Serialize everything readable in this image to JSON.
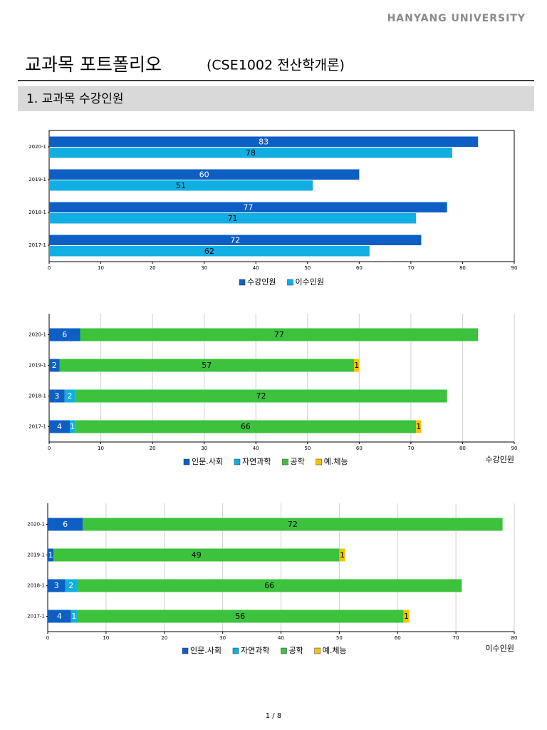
{
  "header": {
    "brand": "HANYANG UNIVERSITY",
    "title": "교과목 포트폴리오",
    "course": "(CSE1002 전산학개론)"
  },
  "section": {
    "title": "1. 교과목 수강인원"
  },
  "footer": {
    "page": "1 / 8"
  },
  "chart_data": [
    {
      "type": "bar",
      "orientation": "horizontal",
      "stacked": false,
      "frame": true,
      "grid": false,
      "legend": "bottom",
      "categories": [
        "2020-1",
        "2019-1",
        "2018-1",
        "2017-1"
      ],
      "series": [
        {
          "name": "수강인원",
          "color": "#0d5fc4",
          "label_color": "#ffffff",
          "values": [
            83,
            60,
            77,
            72
          ]
        },
        {
          "name": "이수인원",
          "color": "#10aee3",
          "label_color": "#000000",
          "values": [
            78,
            51,
            71,
            62
          ]
        }
      ],
      "xlim": [
        0,
        90
      ],
      "xticks": [
        0,
        10,
        20,
        30,
        40,
        50,
        60,
        70,
        80,
        90
      ]
    },
    {
      "type": "bar",
      "orientation": "horizontal",
      "stacked": true,
      "frame": false,
      "grid": true,
      "legend": "bottom",
      "x_label": "수강인원",
      "categories": [
        "2020-1",
        "2019-1",
        "2018-1",
        "2017-1"
      ],
      "series": [
        {
          "name": "인문.사회",
          "color": "#0d5fc4",
          "label_color": "#ffffff",
          "values": [
            6,
            2,
            3,
            4
          ]
        },
        {
          "name": "자연과학",
          "color": "#10aee3",
          "label_color": "#ffffff",
          "values": [
            null,
            null,
            2,
            1
          ]
        },
        {
          "name": "공학",
          "color": "#3cc23c",
          "label_color": "#000000",
          "values": [
            77,
            57,
            72,
            66
          ]
        },
        {
          "name": "예.체능",
          "color": "#f5c400",
          "label_color": "#000000",
          "values": [
            null,
            1,
            null,
            1
          ]
        }
      ],
      "xlim": [
        0,
        90
      ],
      "xticks": [
        0,
        10,
        20,
        30,
        40,
        50,
        60,
        70,
        80,
        90
      ]
    },
    {
      "type": "bar",
      "orientation": "horizontal",
      "stacked": true,
      "frame": false,
      "grid": true,
      "legend": "bottom",
      "x_label": "이수인원",
      "categories": [
        "2020-1",
        "2019-1",
        "2018-1",
        "2017-1"
      ],
      "series": [
        {
          "name": "인문.사회",
          "color": "#0d5fc4",
          "label_color": "#ffffff",
          "values": [
            6,
            1,
            3,
            4
          ]
        },
        {
          "name": "자연과학",
          "color": "#10aee3",
          "label_color": "#ffffff",
          "values": [
            null,
            null,
            2,
            1
          ]
        },
        {
          "name": "공학",
          "color": "#3cc23c",
          "label_color": "#000000",
          "values": [
            72,
            49,
            66,
            56
          ]
        },
        {
          "name": "예.체능",
          "color": "#f5c400",
          "label_color": "#000000",
          "values": [
            null,
            1,
            null,
            1
          ]
        }
      ],
      "xlim": [
        0,
        80
      ],
      "xticks": [
        0,
        10,
        20,
        30,
        40,
        50,
        60,
        70,
        80
      ]
    }
  ]
}
